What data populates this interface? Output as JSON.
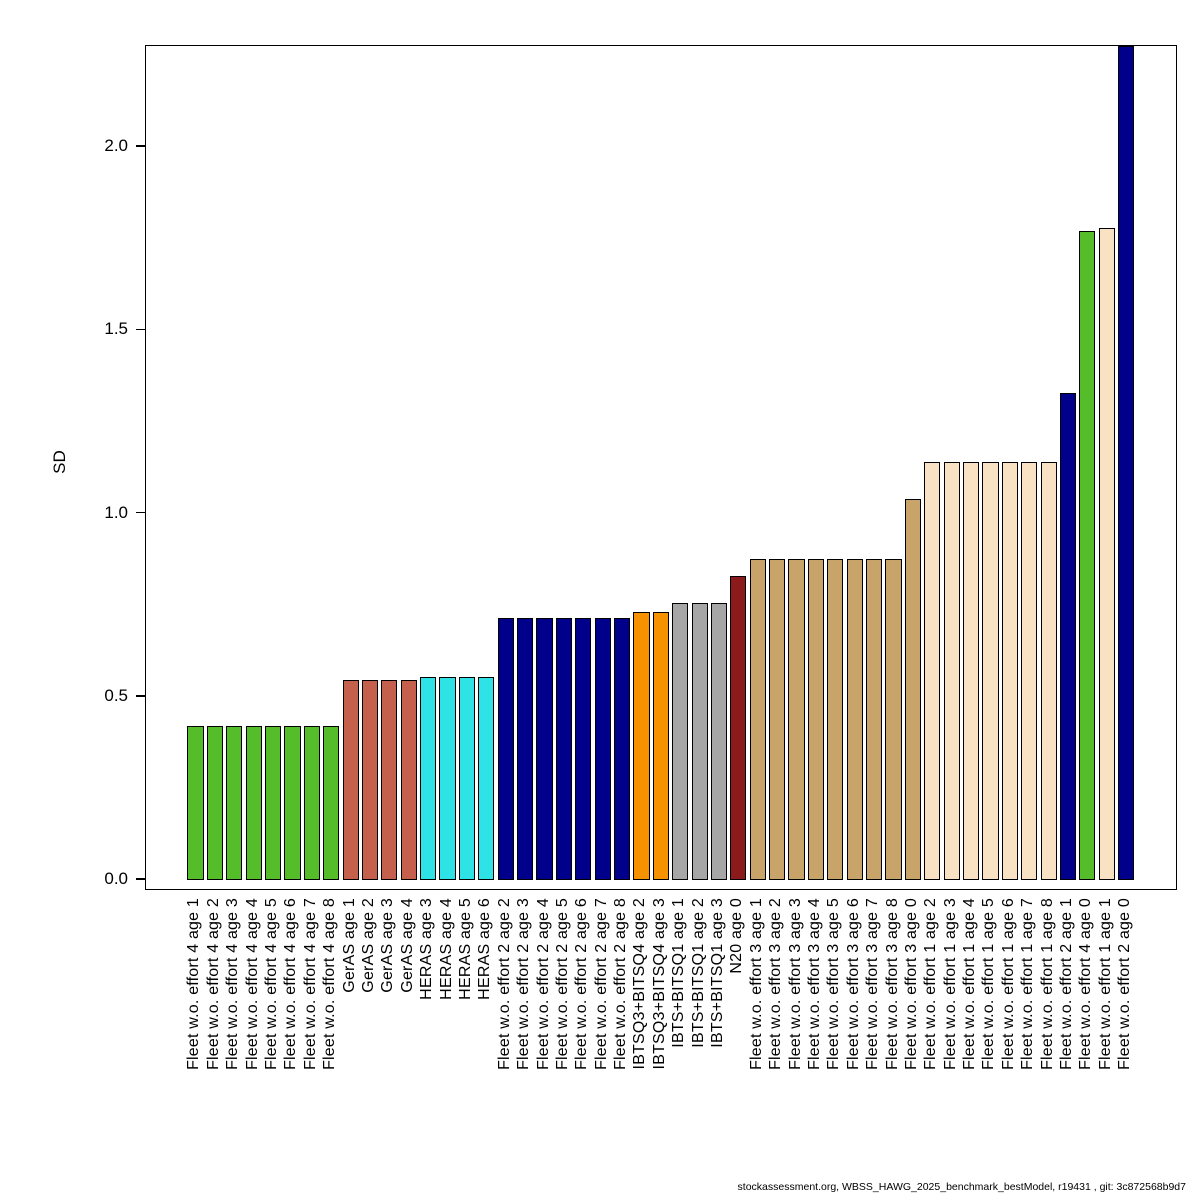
{
  "chart_data": {
    "type": "bar",
    "title": "",
    "xlabel": "",
    "ylabel": "SD",
    "ylim": [
      0,
      2.3
    ],
    "grid": false,
    "legend": false,
    "yticks": [
      {
        "label": "0.0",
        "value": 0.0
      },
      {
        "label": "0.5",
        "value": 0.5
      },
      {
        "label": "1.0",
        "value": 1.0
      },
      {
        "label": "1.5",
        "value": 1.5
      },
      {
        "label": "2.0",
        "value": 2.0
      }
    ],
    "bars": [
      {
        "label": "Fleet w.o. effort 4 age 1",
        "value": 0.42,
        "color": "#55BD2A"
      },
      {
        "label": "Fleet w.o. effort 4 age 2",
        "value": 0.42,
        "color": "#55BD2A"
      },
      {
        "label": "Fleet w.o. effort 4 age 3",
        "value": 0.42,
        "color": "#55BD2A"
      },
      {
        "label": "Fleet w.o. effort 4 age 4",
        "value": 0.42,
        "color": "#55BD2A"
      },
      {
        "label": "Fleet w.o. effort 4 age 5",
        "value": 0.42,
        "color": "#55BD2A"
      },
      {
        "label": "Fleet w.o. effort 4 age 6",
        "value": 0.42,
        "color": "#55BD2A"
      },
      {
        "label": "Fleet w.o. effort 4 age 7",
        "value": 0.42,
        "color": "#55BD2A"
      },
      {
        "label": "Fleet w.o. effort 4 age 8",
        "value": 0.42,
        "color": "#55BD2A"
      },
      {
        "label": "GerAS age 1",
        "value": 0.545,
        "color": "#C4604C"
      },
      {
        "label": "GerAS age 2",
        "value": 0.545,
        "color": "#C4604C"
      },
      {
        "label": "GerAS age 3",
        "value": 0.545,
        "color": "#C4604C"
      },
      {
        "label": "GerAS age 4",
        "value": 0.545,
        "color": "#C4604C"
      },
      {
        "label": "HERAS age 3",
        "value": 0.555,
        "color": "#2FE2E6"
      },
      {
        "label": "HERAS age 4",
        "value": 0.555,
        "color": "#2FE2E6"
      },
      {
        "label": "HERAS age 5",
        "value": 0.555,
        "color": "#2FE2E6"
      },
      {
        "label": "HERAS age 6",
        "value": 0.555,
        "color": "#2FE2E6"
      },
      {
        "label": "Fleet w.o. effort 2 age 2",
        "value": 0.715,
        "color": "#00008B"
      },
      {
        "label": "Fleet w.o. effort 2 age 3",
        "value": 0.715,
        "color": "#00008B"
      },
      {
        "label": "Fleet w.o. effort 2 age 4",
        "value": 0.715,
        "color": "#00008B"
      },
      {
        "label": "Fleet w.o. effort 2 age 5",
        "value": 0.715,
        "color": "#00008B"
      },
      {
        "label": "Fleet w.o. effort 2 age 6",
        "value": 0.715,
        "color": "#00008B"
      },
      {
        "label": "Fleet w.o. effort 2 age 7",
        "value": 0.715,
        "color": "#00008B"
      },
      {
        "label": "Fleet w.o. effort 2 age 8",
        "value": 0.715,
        "color": "#00008B"
      },
      {
        "label": "IBTSQ3+BITSQ4 age 2",
        "value": 0.73,
        "color": "#F69200"
      },
      {
        "label": "IBTSQ3+BITSQ4 age 3",
        "value": 0.73,
        "color": "#F69200"
      },
      {
        "label": "IBTS+BITSQ1 age 1",
        "value": 0.755,
        "color": "#A6A6A6"
      },
      {
        "label": "IBTS+BITSQ1 age 2",
        "value": 0.755,
        "color": "#A6A6A6"
      },
      {
        "label": "IBTS+BITSQ1 age 3",
        "value": 0.755,
        "color": "#A6A6A6"
      },
      {
        "label": "N20 age 0",
        "value": 0.83,
        "color": "#8B1A1A"
      },
      {
        "label": "Fleet w.o. effort 3 age 1",
        "value": 0.875,
        "color": "#C8A46A"
      },
      {
        "label": "Fleet w.o. effort 3 age 2",
        "value": 0.875,
        "color": "#C8A46A"
      },
      {
        "label": "Fleet w.o. effort 3 age 3",
        "value": 0.875,
        "color": "#C8A46A"
      },
      {
        "label": "Fleet w.o. effort 3 age 4",
        "value": 0.875,
        "color": "#C8A46A"
      },
      {
        "label": "Fleet w.o. effort 3 age 5",
        "value": 0.875,
        "color": "#C8A46A"
      },
      {
        "label": "Fleet w.o. effort 3 age 6",
        "value": 0.875,
        "color": "#C8A46A"
      },
      {
        "label": "Fleet w.o. effort 3 age 7",
        "value": 0.875,
        "color": "#C8A46A"
      },
      {
        "label": "Fleet w.o. effort 3 age 8",
        "value": 0.875,
        "color": "#C8A46A"
      },
      {
        "label": "Fleet w.o. effort 3 age 0",
        "value": 1.04,
        "color": "#C8A46A"
      },
      {
        "label": "Fleet w.o. effort 1 age 2",
        "value": 1.14,
        "color": "#F8E2C3"
      },
      {
        "label": "Fleet w.o. effort 1 age 3",
        "value": 1.14,
        "color": "#F8E2C3"
      },
      {
        "label": "Fleet w.o. effort 1 age 4",
        "value": 1.14,
        "color": "#F8E2C3"
      },
      {
        "label": "Fleet w.o. effort 1 age 5",
        "value": 1.14,
        "color": "#F8E2C3"
      },
      {
        "label": "Fleet w.o. effort 1 age 6",
        "value": 1.14,
        "color": "#F8E2C3"
      },
      {
        "label": "Fleet w.o. effort 1 age 7",
        "value": 1.14,
        "color": "#F8E2C3"
      },
      {
        "label": "Fleet w.o. effort 1 age 8",
        "value": 1.14,
        "color": "#F8E2C3"
      },
      {
        "label": "Fleet w.o. effort 2 age 1",
        "value": 1.33,
        "color": "#00008B"
      },
      {
        "label": "Fleet w.o. effort 4 age 0",
        "value": 1.77,
        "color": "#55BD2A"
      },
      {
        "label": "Fleet w.o. effort 1 age 1",
        "value": 1.78,
        "color": "#F8E2C3"
      },
      {
        "label": "Fleet w.o. effort 2 age 0",
        "value": 2.28,
        "color": "#00008B"
      }
    ]
  },
  "footer": {
    "text": "stockassessment.org, WBSS_HAWG_2025_benchmark_bestModel, r19431 , git: 3c872568b9d7"
  }
}
